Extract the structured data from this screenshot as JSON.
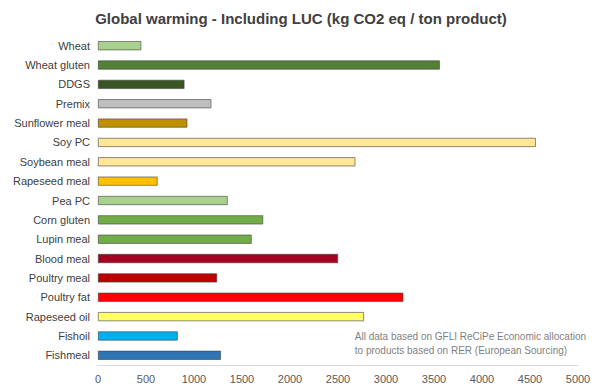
{
  "chart_data": {
    "type": "bar",
    "orientation": "horizontal",
    "title": "Global warming - Including LUC (kg CO2 eq / ton product)",
    "annotations": [
      "All data based on GFLI ReCiPe Economic allocation",
      "to products based on RER (European Sourcing)"
    ],
    "categories": [
      "Wheat",
      "Wheat gluten",
      "DDGS",
      "Premix",
      "Sunflower meal",
      "Soy PC",
      "Soybean meal",
      "Rapeseed meal",
      "Pea PC",
      "Corn gluten",
      "Lupin meal",
      "Blood meal",
      "Poultry meal",
      "Poultry fat",
      "Rapeseed oil",
      "Fishoil",
      "Fishmeal"
    ],
    "values": [
      450,
      3560,
      900,
      1180,
      930,
      4560,
      2680,
      620,
      1350,
      1720,
      1600,
      2500,
      1240,
      3180,
      2770,
      830,
      1280
    ],
    "colors": [
      "#a9d18e",
      "#548235",
      "#375623",
      "#bfbfbf",
      "#bf9000",
      "#ffe699",
      "#ffe699",
      "#ffc000",
      "#a9d18e",
      "#70ad47",
      "#70ad47",
      "#a50021",
      "#c00000",
      "#ff0000",
      "#ffff66",
      "#00b0f0",
      "#2e75b6"
    ],
    "xlim": [
      0,
      5000
    ],
    "xticks": [
      0,
      500,
      1000,
      1500,
      2000,
      2500,
      3000,
      3500,
      4000,
      4500,
      5000
    ],
    "grid": false,
    "data_labels": false
  }
}
